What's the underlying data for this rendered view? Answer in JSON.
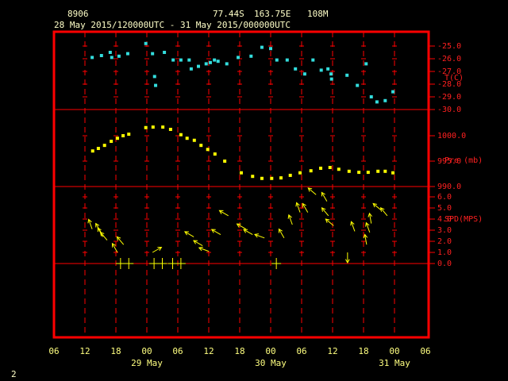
{
  "chart_data": {
    "type": "meteogram",
    "header": {
      "station": "8906",
      "lat": "77.44S",
      "lon": "163.75E",
      "elev": "108M",
      "period": "28 May 2015/120000UTC - 31 May 2015/000000UTC"
    },
    "corner_label": "2",
    "frame_color": "#ff0000",
    "xlim": [
      0,
      72
    ],
    "xticks": [
      {
        "value": 0,
        "label": "06"
      },
      {
        "value": 6,
        "label": "12"
      },
      {
        "value": 12,
        "label": "18"
      },
      {
        "value": 18,
        "label": "00"
      },
      {
        "value": 24,
        "label": "06"
      },
      {
        "value": 30,
        "label": "12"
      },
      {
        "value": 36,
        "label": "18"
      },
      {
        "value": 42,
        "label": "00"
      },
      {
        "value": 48,
        "label": "06"
      },
      {
        "value": 54,
        "label": "12"
      },
      {
        "value": 60,
        "label": "18"
      },
      {
        "value": 66,
        "label": "00"
      },
      {
        "value": 72,
        "label": "06"
      }
    ],
    "date_ticks": [
      {
        "value": 18,
        "label": "29 May"
      },
      {
        "value": 42,
        "label": "30 May"
      },
      {
        "value": 66,
        "label": "31 May"
      }
    ],
    "panels": [
      {
        "type": "scatter",
        "ylabel": "T(C)",
        "color": "#33dddd",
        "ylim": [
          -30,
          -25
        ],
        "yticks": [
          {
            "value": -25,
            "label": "-25.0"
          },
          {
            "value": -26,
            "label": "-26.0"
          },
          {
            "value": -27,
            "label": "-27.0"
          },
          {
            "value": -28,
            "label": "-28.0"
          },
          {
            "value": -29,
            "label": "-29.0"
          },
          {
            "value": -30,
            "label": "-30.0"
          }
        ],
        "x": [
          7.4,
          9.2,
          10.9,
          11.2,
          12.6,
          14.3,
          17.8,
          19.1,
          19.5,
          19.7,
          21.4,
          23.1,
          24.6,
          26.2,
          26.6,
          28,
          29.5,
          30.3,
          31.1,
          31.8,
          33.5,
          35.7,
          38.2,
          40.3,
          42,
          43.2,
          45.2,
          46.8,
          48.6,
          50.2,
          51.8,
          53.1,
          53.7,
          53.8,
          56.8,
          58.8,
          60.5,
          61.5,
          62.6,
          64.2,
          65.7
        ],
        "values": [
          -25.9,
          -25.75,
          -25.5,
          -25.9,
          -25.8,
          -25.6,
          -24.8,
          -25.6,
          -27.4,
          -28.1,
          -25.5,
          -26.1,
          -26.1,
          -26.1,
          -26.8,
          -26.6,
          -26.4,
          -26.3,
          -26.1,
          -26.2,
          -26.4,
          -25.9,
          -25.8,
          -25.1,
          -25.2,
          -26.1,
          -26.1,
          -26.8,
          -27.2,
          -26.1,
          -26.9,
          -26.8,
          -27.2,
          -27.6,
          -27.3,
          -28.1,
          -26.4,
          -29,
          -29.4,
          -29.3,
          -28.6
        ]
      },
      {
        "type": "scatter",
        "ylabel": "Pre (mb)",
        "color": "#ffff00",
        "ylim": [
          990,
          1005
        ],
        "yticks": [
          {
            "value": 1000,
            "label": "1000.0"
          },
          {
            "value": 995,
            "label": "995.0"
          },
          {
            "value": 990,
            "label": "990.0"
          }
        ],
        "x": [
          7.5,
          8.6,
          9.8,
          11.1,
          12.3,
          13.4,
          14.5,
          17.8,
          19.2,
          21.1,
          22.6,
          24.6,
          25.8,
          27.2,
          28.5,
          29.8,
          31.2,
          33.1,
          36.3,
          38.5,
          40.3,
          42.2,
          44,
          45.8,
          47.7,
          49.8,
          51.7,
          53.5,
          55.2,
          57.2,
          59.1,
          60.9,
          62.8,
          64.2,
          65.7
        ],
        "values": [
          997,
          997.5,
          998.1,
          998.9,
          999.5,
          1000,
          1000.3,
          1001.6,
          1001.7,
          1001.7,
          1001.25,
          1000.2,
          999.5,
          999.1,
          998.1,
          997.3,
          996.4,
          995,
          992.7,
          992,
          991.6,
          991.6,
          991.7,
          992.2,
          992.7,
          993.1,
          993.6,
          993.75,
          993.4,
          993,
          992.8,
          992.8,
          993,
          993,
          992.7
        ]
      },
      {
        "type": "wind",
        "ylabel": "SPD(MPS)",
        "color": "#ffff00",
        "ylim": [
          0,
          6
        ],
        "yticks": [
          {
            "value": 0,
            "label": "0.0"
          },
          {
            "value": 1,
            "label": "1.0"
          },
          {
            "value": 2,
            "label": "2.0"
          },
          {
            "value": 3,
            "label": "3.0"
          },
          {
            "value": 4,
            "label": "4.0"
          },
          {
            "value": 5,
            "label": "5.0"
          },
          {
            "value": 6,
            "label": "6.0"
          }
        ],
        "x": [
          7.4,
          9.1,
          9.5,
          10.3,
          12.3,
          13.5,
          12.9,
          14.5,
          19.1,
          19.4,
          21,
          23,
          24.6,
          27.1,
          28.8,
          30,
          32.3,
          33.8,
          37.2,
          38.5,
          40.8,
          43.1,
          44.6,
          46.2,
          47.7,
          49.2,
          50.8,
          52.9,
          53.2,
          54.2,
          56.9,
          58.3,
          60.6,
          61.2,
          61.5,
          63.4,
          64.6
        ],
        "values": [
          3.1,
          2.8,
          2.4,
          2.1,
          1,
          1.7,
          0,
          0,
          1,
          0,
          0,
          0,
          0,
          2.4,
          1.6,
          1.1,
          2.6,
          4.3,
          3.1,
          2.6,
          2.3,
          0,
          2.3,
          3.5,
          4.6,
          4.6,
          6.2,
          5.6,
          4.3,
          3.4,
          1,
          2.9,
          1.7,
          2.8,
          3.6,
          4.8,
          4.3
        ],
        "directions": [
          340,
          330,
          330,
          320,
          330,
          320,
          0,
          0,
          60,
          0,
          0,
          0,
          0,
          300,
          300,
          290,
          300,
          300,
          300,
          300,
          290,
          0,
          330,
          340,
          340,
          330,
          310,
          330,
          320,
          310,
          180,
          340,
          350,
          340,
          350,
          310,
          320
        ]
      }
    ]
  }
}
